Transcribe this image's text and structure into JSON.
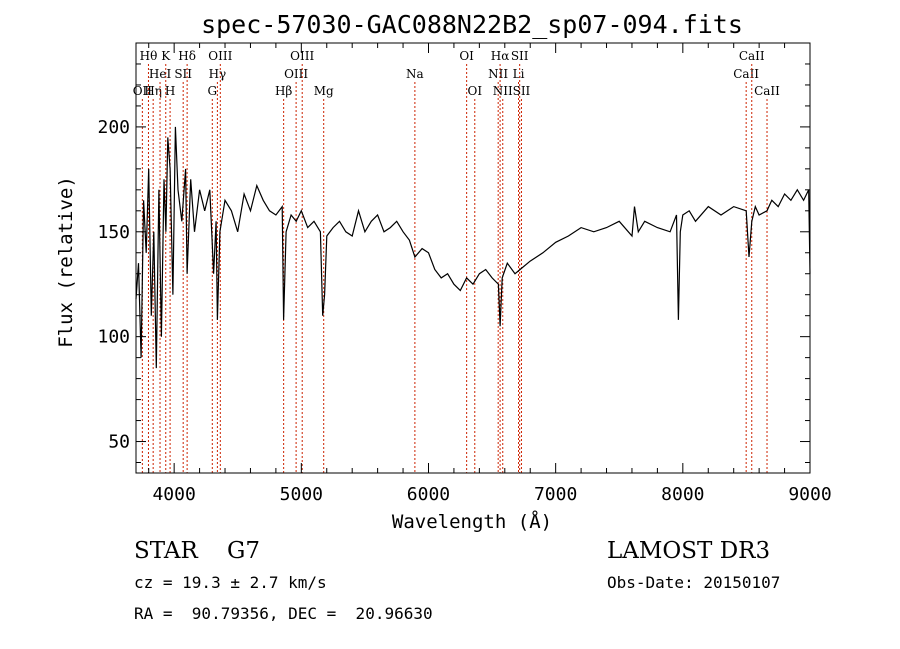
{
  "chart_data": {
    "type": "line",
    "title": "spec-57030-GAC088N22B2_sp07-094.fits",
    "xlabel": "Wavelength (Å)",
    "ylabel": "Flux (relative)",
    "xlim": [
      3700,
      9000
    ],
    "ylim": [
      35,
      240
    ],
    "xticks": [
      4000,
      5000,
      6000,
      7000,
      8000,
      9000
    ],
    "yticks": [
      50,
      100,
      150,
      200
    ],
    "series": [
      {
        "x": [
          3700,
          3720,
          3740,
          3760,
          3780,
          3800,
          3820,
          3840,
          3860,
          3880,
          3900,
          3920,
          3935,
          3950,
          3968,
          3990,
          4010,
          4030,
          4060,
          4090,
          4102,
          4130,
          4160,
          4200,
          4240,
          4280,
          4310,
          4330,
          4340,
          4360,
          4400,
          4450,
          4500,
          4550,
          4600,
          4650,
          4700,
          4750,
          4800,
          4850,
          4861,
          4880,
          4920,
          4960,
          5000,
          5050,
          5100,
          5150,
          5168,
          5183,
          5200,
          5250,
          5300,
          5350,
          5400,
          5450,
          5500,
          5550,
          5600,
          5650,
          5700,
          5750,
          5800,
          5850,
          5893,
          5950,
          6000,
          6050,
          6100,
          6150,
          6200,
          6250,
          6300,
          6350,
          6400,
          6450,
          6500,
          6550,
          6563,
          6580,
          6620,
          6680,
          6720,
          6800,
          6900,
          7000,
          7100,
          7200,
          7300,
          7400,
          7500,
          7600,
          7620,
          7650,
          7700,
          7800,
          7900,
          7950,
          7965,
          7980,
          8000,
          8050,
          8100,
          8200,
          8300,
          8400,
          8498,
          8520,
          8542,
          8570,
          8600,
          8662,
          8700,
          8750,
          8800,
          8850,
          8900,
          8950,
          8990,
          9000
        ],
        "values": [
          118,
          135,
          90,
          165,
          140,
          180,
          110,
          150,
          85,
          170,
          100,
          175,
          150,
          195,
          180,
          120,
          200,
          170,
          155,
          180,
          130,
          175,
          150,
          170,
          160,
          170,
          130,
          155,
          108,
          150,
          165,
          160,
          150,
          168,
          160,
          172,
          165,
          160,
          158,
          162,
          108,
          150,
          158,
          155,
          160,
          152,
          155,
          150,
          110,
          120,
          148,
          152,
          155,
          150,
          148,
          160,
          150,
          155,
          158,
          150,
          152,
          155,
          150,
          146,
          138,
          142,
          140,
          132,
          128,
          130,
          125,
          122,
          128,
          125,
          130,
          132,
          128,
          125,
          105,
          128,
          135,
          130,
          132,
          136,
          140,
          145,
          148,
          152,
          150,
          152,
          155,
          148,
          162,
          150,
          155,
          152,
          150,
          158,
          108,
          150,
          158,
          160,
          155,
          162,
          158,
          162,
          160,
          138,
          155,
          162,
          158,
          160,
          165,
          162,
          168,
          165,
          170,
          165,
          170,
          130
        ]
      }
    ],
    "line_markers": [
      {
        "wave": 3750,
        "row": 2,
        "label": "OII"
      },
      {
        "wave": 3798,
        "row": 0,
        "label": "Hθ"
      },
      {
        "wave": 3835,
        "row": 2,
        "label": "Hη"
      },
      {
        "wave": 3889,
        "row": 1,
        "label": "HeI"
      },
      {
        "wave": 3934,
        "row": 0,
        "label": "K"
      },
      {
        "wave": 3968,
        "row": 2,
        "label": "H"
      },
      {
        "wave": 4071,
        "row": 1,
        "label": "SII"
      },
      {
        "wave": 4102,
        "row": 0,
        "label": "Hδ"
      },
      {
        "wave": 4300,
        "row": 2,
        "label": "G"
      },
      {
        "wave": 4340,
        "row": 1,
        "label": "Hγ"
      },
      {
        "wave": 4363,
        "row": 0,
        "label": "OIII"
      },
      {
        "wave": 4861,
        "row": 2,
        "label": "Hβ"
      },
      {
        "wave": 4959,
        "row": 1,
        "label": "OIII"
      },
      {
        "wave": 5007,
        "row": 0,
        "label": "OIII"
      },
      {
        "wave": 5176,
        "row": 2,
        "label": "Mg"
      },
      {
        "wave": 5893,
        "row": 1,
        "label": "Na"
      },
      {
        "wave": 6300,
        "row": 0,
        "label": "OI"
      },
      {
        "wave": 6364,
        "row": 2,
        "label": "OI"
      },
      {
        "wave": 6548,
        "row": 1,
        "label": "NII"
      },
      {
        "wave": 6563,
        "row": 0,
        "label": "Hα"
      },
      {
        "wave": 6584,
        "row": 2,
        "label": "NII"
      },
      {
        "wave": 6708,
        "row": 1,
        "label": "Li"
      },
      {
        "wave": 6717,
        "row": 0,
        "label": "SII"
      },
      {
        "wave": 6731,
        "row": 2,
        "label": "SII"
      },
      {
        "wave": 8498,
        "row": 1,
        "label": "CaII"
      },
      {
        "wave": 8542,
        "row": 0,
        "label": "CaII"
      },
      {
        "wave": 8662,
        "row": 2,
        "label": "CaII"
      }
    ],
    "marker_color": "#cc2200"
  },
  "info": {
    "object_type": "STAR",
    "subclass": "G7",
    "cz": "cz = 19.3 ± 2.7 km/s",
    "coords": "RA =  90.79356, DEC =  20.96630",
    "survey": "LAMOST DR3",
    "obs_date": "Obs-Date: 20150107"
  }
}
